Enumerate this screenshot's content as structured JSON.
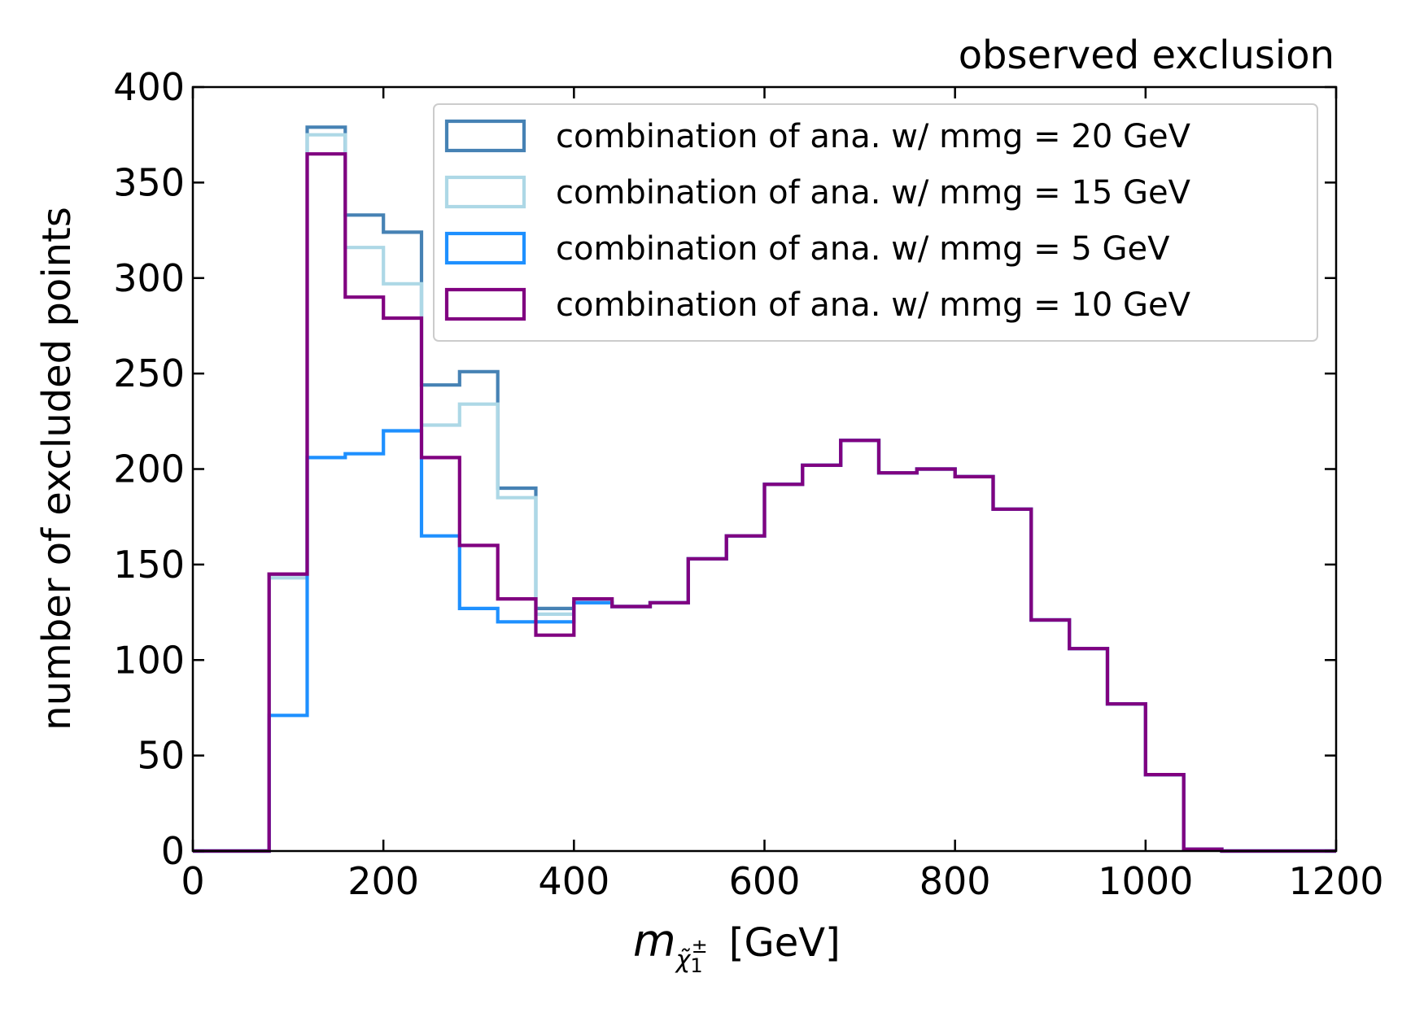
{
  "chart_data": {
    "type": "step-histogram",
    "title": "observed exclusion",
    "xlabel": {
      "symbol": "m",
      "sub_base": "χ̃",
      "sub_index": "1",
      "sup": "±",
      "unit": "[GeV]"
    },
    "ylabel": "number of excluded points",
    "xlim": [
      0,
      1200
    ],
    "ylim": [
      0,
      400
    ],
    "x_ticks": [
      0,
      200,
      400,
      600,
      800,
      1000,
      1200
    ],
    "y_ticks": [
      0,
      50,
      100,
      150,
      200,
      250,
      300,
      350,
      400
    ],
    "bin_edges": [
      0,
      40,
      80,
      120,
      160,
      200,
      240,
      280,
      320,
      360,
      400,
      440,
      480,
      520,
      560,
      600,
      640,
      680,
      720,
      760,
      800,
      840,
      880,
      920,
      960,
      1000,
      1040,
      1080,
      1120,
      1160,
      1200
    ],
    "legend_position": "top-right",
    "series": [
      {
        "name": "combination of ana. w/ mmg = 20 GeV",
        "color": "#4682b4",
        "values": [
          0,
          0,
          145,
          379,
          333,
          324,
          244,
          251,
          190,
          127,
          130,
          128,
          130,
          153,
          165,
          192,
          202,
          215,
          198,
          200,
          196,
          179,
          121,
          106,
          77,
          40,
          1,
          0,
          0,
          0
        ]
      },
      {
        "name": "combination of ana. w/ mmg = 15 GeV",
        "color": "#add8e6",
        "values": [
          0,
          0,
          143,
          375,
          316,
          297,
          223,
          234,
          185,
          124,
          130,
          128,
          130,
          153,
          165,
          192,
          202,
          215,
          198,
          200,
          196,
          179,
          121,
          106,
          77,
          40,
          1,
          0,
          0,
          0
        ]
      },
      {
        "name": "combination of ana. w/ mmg = 5 GeV",
        "color": "#1e90ff",
        "values": [
          0,
          0,
          71,
          206,
          208,
          220,
          165,
          127,
          120,
          120,
          130,
          128,
          130,
          153,
          165,
          192,
          202,
          215,
          198,
          200,
          196,
          179,
          121,
          106,
          77,
          40,
          1,
          0,
          0,
          0
        ]
      },
      {
        "name": "combination of ana. w/ mmg = 10 GeV",
        "color": "#800080",
        "values": [
          0,
          0,
          145,
          365,
          290,
          279,
          206,
          160,
          132,
          113,
          132,
          128,
          130,
          153,
          165,
          192,
          202,
          215,
          198,
          200,
          196,
          179,
          121,
          106,
          77,
          40,
          1,
          0,
          0,
          0
        ]
      }
    ]
  }
}
